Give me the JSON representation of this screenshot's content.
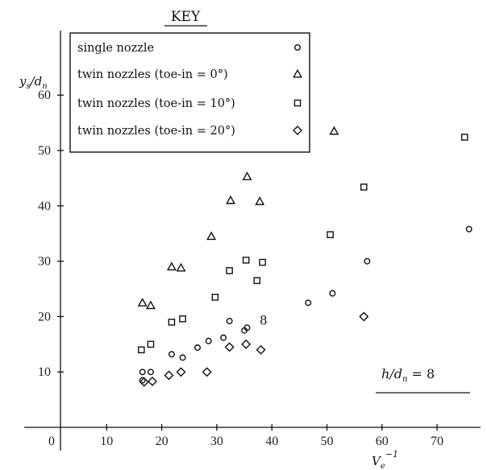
{
  "chart_data": {
    "type": "scatter",
    "title": "KEY",
    "ylabel": "y_s/d_n",
    "xlabel": "V_e^-1",
    "annotation": "h/d_n = 8",
    "point_label": "8",
    "xlim": [
      0,
      80
    ],
    "ylim": [
      0,
      65
    ],
    "x_ticks": [
      0,
      10,
      20,
      30,
      40,
      50,
      60,
      70
    ],
    "y_ticks": [
      10,
      20,
      30,
      40,
      50,
      60
    ],
    "x_tick_labels": [
      "0",
      "10",
      "20",
      "30",
      "40",
      "50",
      "60",
      "70"
    ],
    "y_tick_labels": [
      "10",
      "20",
      "30",
      "40",
      "50",
      "60"
    ],
    "grid": false,
    "legend_position": "top-left",
    "series": [
      {
        "name": "single nozzle",
        "marker": "circle",
        "points": [
          [
            16.5,
            10.0
          ],
          [
            18.0,
            10.0
          ],
          [
            16.5,
            8.5
          ],
          [
            21.8,
            13.2
          ],
          [
            23.8,
            12.6
          ],
          [
            26.5,
            14.4
          ],
          [
            28.5,
            15.6
          ],
          [
            31.2,
            16.2
          ],
          [
            32.3,
            19.2
          ],
          [
            35.0,
            17.5
          ],
          [
            35.5,
            18.0
          ],
          [
            46.6,
            22.5
          ],
          [
            51.0,
            24.2
          ],
          [
            57.3,
            30.0
          ],
          [
            75.8,
            35.8
          ]
        ]
      },
      {
        "name": "twin nozzles (toe-in = 0°)",
        "marker": "triangle",
        "points": [
          [
            16.5,
            22.5
          ],
          [
            18.0,
            22.0
          ],
          [
            21.8,
            29.0
          ],
          [
            23.5,
            28.8
          ],
          [
            29.0,
            34.5
          ],
          [
            32.5,
            41.0
          ],
          [
            35.5,
            45.3
          ],
          [
            37.8,
            40.8
          ],
          [
            51.3,
            53.5
          ]
        ]
      },
      {
        "name": "twin nozzles (toe-in = 10°)",
        "marker": "square",
        "points": [
          [
            16.3,
            14.0
          ],
          [
            18.0,
            15.0
          ],
          [
            21.8,
            19.0
          ],
          [
            23.8,
            19.6
          ],
          [
            29.7,
            23.5
          ],
          [
            32.3,
            28.3
          ],
          [
            35.3,
            30.2
          ],
          [
            37.3,
            26.5
          ],
          [
            38.3,
            29.8
          ],
          [
            50.6,
            34.8
          ],
          [
            56.7,
            43.4
          ],
          [
            75.0,
            52.4
          ]
        ]
      },
      {
        "name": "twin nozzles (toe-in = 20°)",
        "marker": "diamond",
        "points": [
          [
            16.8,
            8.2
          ],
          [
            18.3,
            8.3
          ],
          [
            21.3,
            9.4
          ],
          [
            23.5,
            10.0
          ],
          [
            28.2,
            10.0
          ],
          [
            32.3,
            14.5
          ],
          [
            35.3,
            15.0
          ],
          [
            38.0,
            14.0
          ],
          [
            56.7,
            20.0
          ]
        ]
      }
    ]
  }
}
